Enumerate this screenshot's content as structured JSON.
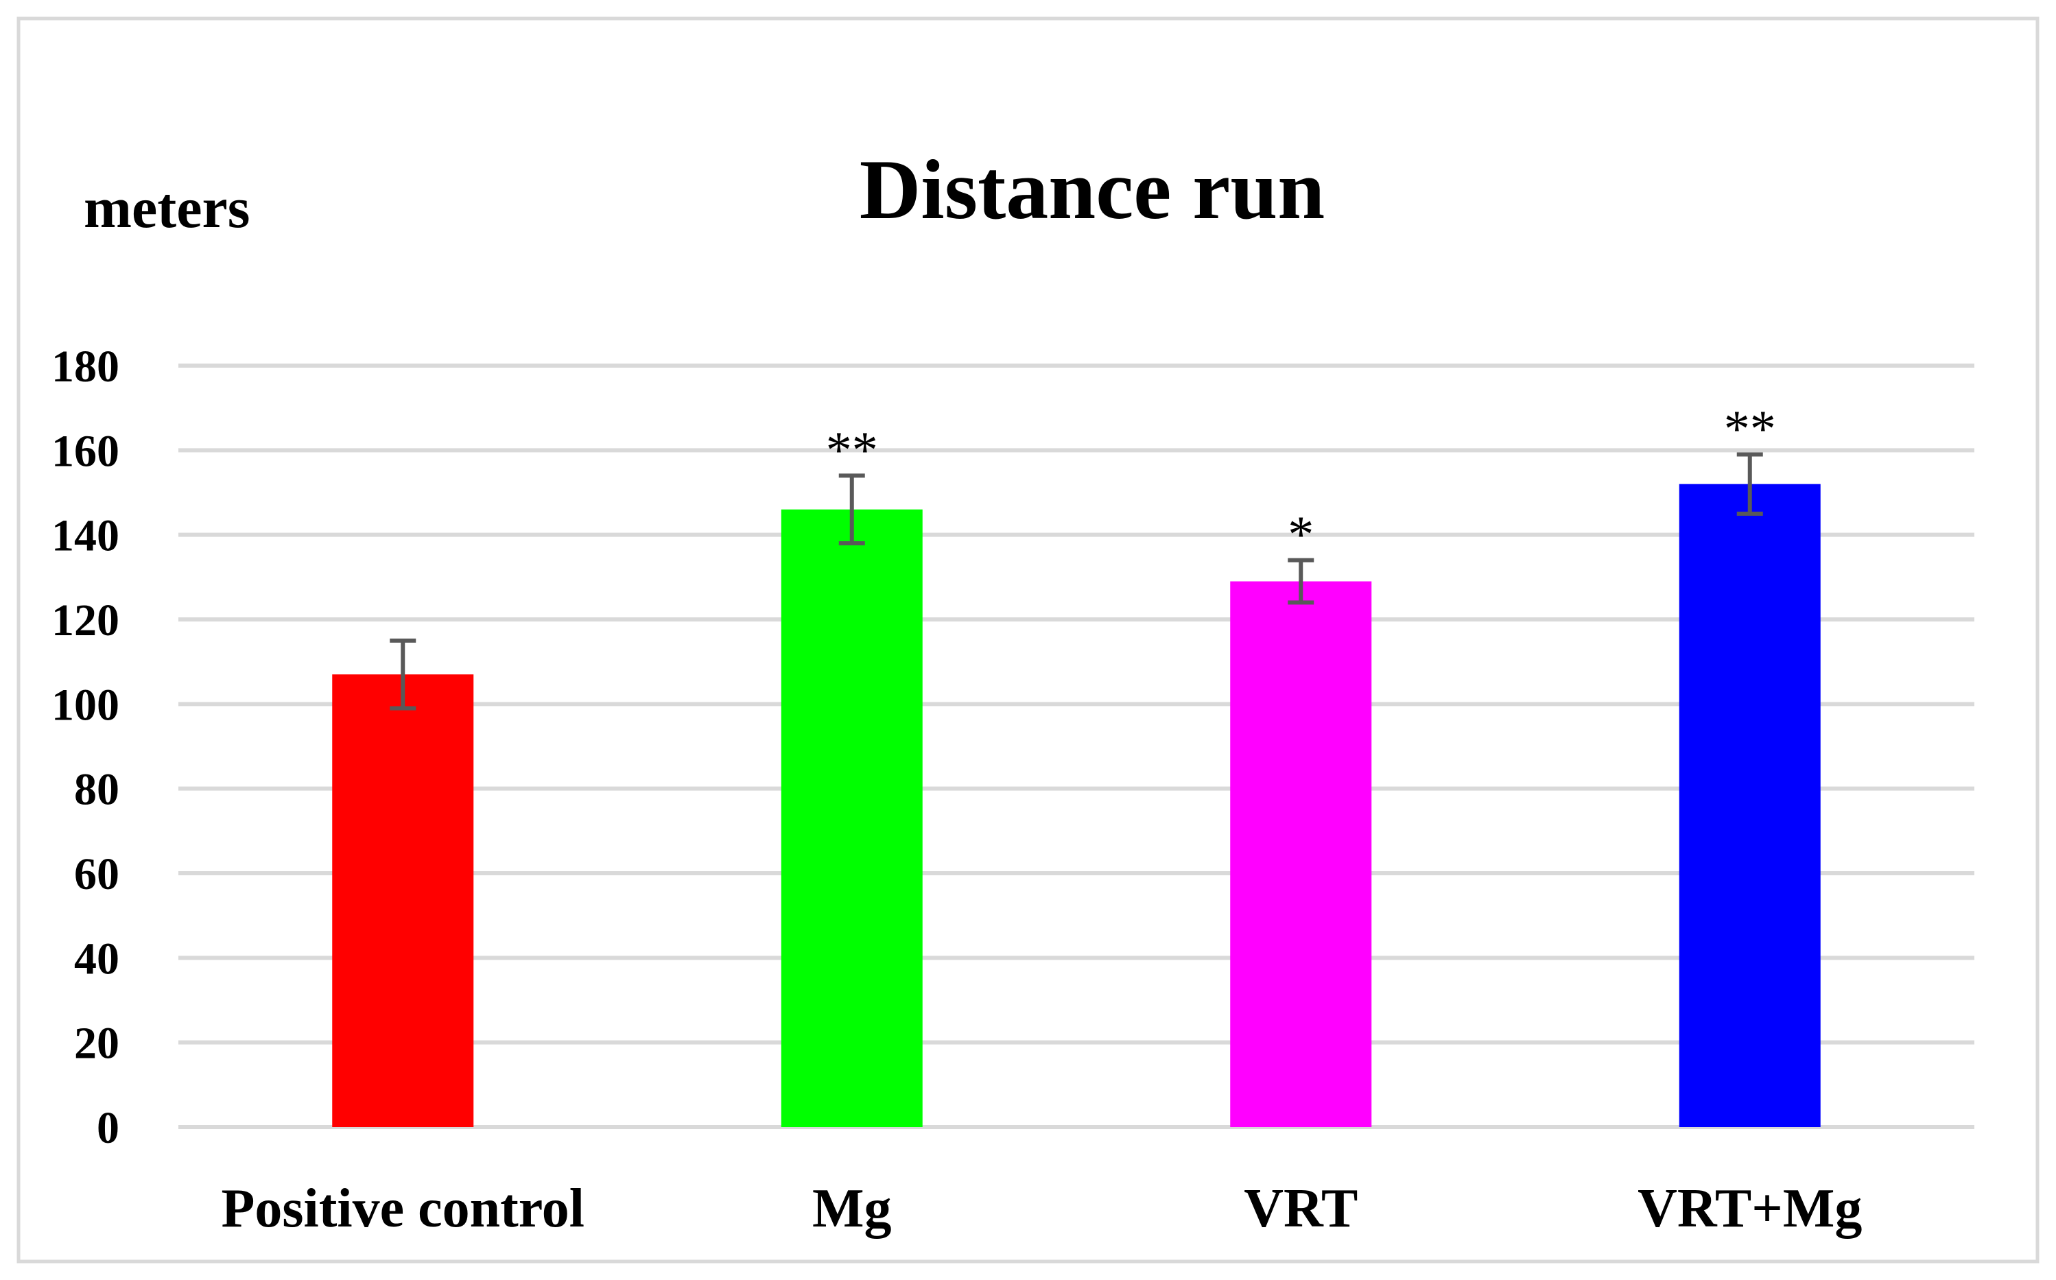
{
  "chart_data": {
    "type": "bar",
    "title": "Distance run",
    "ylabel": "meters",
    "xlabel": "",
    "categories": [
      "Positive control",
      "Mg",
      "VRT",
      "VRT+Mg"
    ],
    "values": [
      107,
      146,
      129,
      152
    ],
    "error": [
      8,
      8,
      5,
      7
    ],
    "significance": [
      "",
      "**",
      "*",
      "**"
    ],
    "colors": [
      "#ff0000",
      "#00ff00",
      "#ff00ff",
      "#0000ff"
    ],
    "ylim": [
      0,
      180
    ],
    "yticks": [
      0,
      20,
      40,
      60,
      80,
      100,
      120,
      140,
      160,
      180
    ],
    "grid": true,
    "legend": "none"
  }
}
